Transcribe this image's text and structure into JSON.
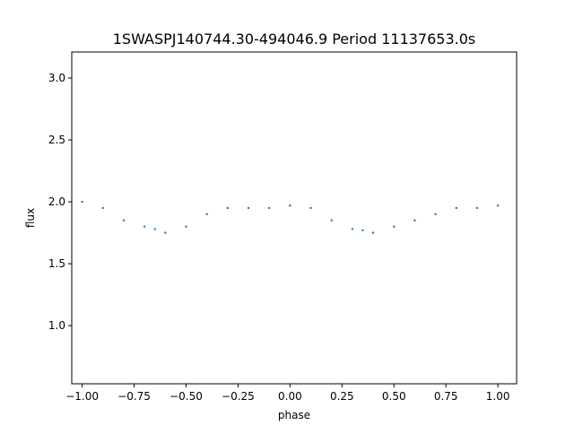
{
  "chart_data": {
    "type": "scatter",
    "title": "1SWASPJ140744.30-494046.9 Period 11137653.0s",
    "xlabel": "phase",
    "ylabel": "flux",
    "xlim": [
      -1.05,
      1.09
    ],
    "ylim": [
      0.53,
      3.21
    ],
    "xticks": [
      -1.0,
      -0.75,
      -0.5,
      -0.25,
      0.0,
      0.25,
      0.5,
      0.75,
      1.0
    ],
    "xtick_labels": [
      "−1.00",
      "−0.75",
      "−0.50",
      "−0.25",
      "0.00",
      "0.25",
      "0.50",
      "0.75",
      "1.00"
    ],
    "yticks": [
      1.0,
      1.5,
      2.0,
      2.5,
      3.0
    ],
    "ytick_labels": [
      "1.0",
      "1.5",
      "2.0",
      "2.5",
      "3.0"
    ],
    "grid": false,
    "marker_color": "#1f77b4",
    "series": [
      {
        "x": [
          -1.0,
          -0.9,
          -0.8,
          -0.7,
          -0.65,
          -0.6,
          -0.5,
          -0.4,
          -0.3,
          -0.2,
          -0.1,
          0.0,
          0.1,
          0.2,
          0.3,
          0.35,
          0.4,
          0.5,
          0.6,
          0.7,
          0.8,
          0.9,
          1.0
        ],
        "y": [
          2.0,
          1.95,
          1.85,
          1.8,
          1.78,
          1.75,
          1.8,
          1.9,
          1.95,
          1.95,
          1.95,
          1.97,
          1.95,
          1.85,
          1.78,
          1.77,
          1.75,
          1.8,
          1.85,
          1.9,
          1.95,
          1.95,
          1.97
        ]
      }
    ]
  }
}
